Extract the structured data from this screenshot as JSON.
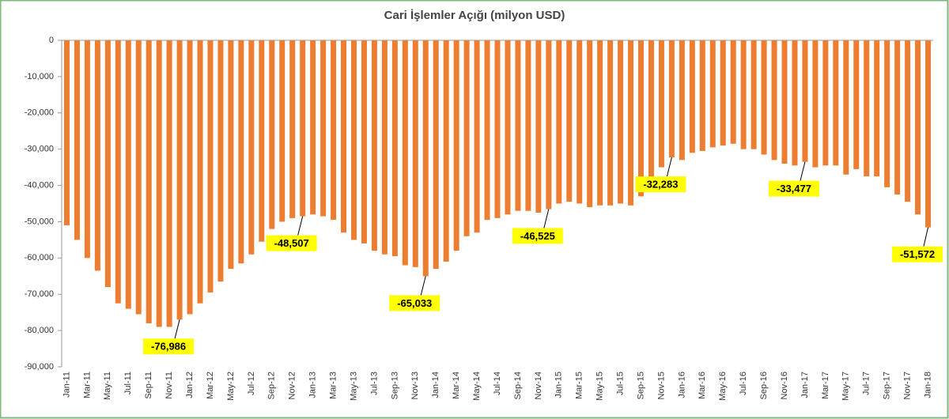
{
  "chart_data": {
    "type": "bar",
    "title": "Cari İşlemler Açığı (milyon USD)",
    "categories": [
      "Jan-11",
      null,
      "Mar-11",
      null,
      "May-11",
      null,
      "Jul-11",
      null,
      "Sep-11",
      null,
      "Nov-11",
      null,
      "Jan-12",
      null,
      "Mar-12",
      null,
      "May-12",
      null,
      "Jul-12",
      null,
      "Sep-12",
      null,
      "Nov-12",
      null,
      "Jan-13",
      null,
      "Mar-13",
      null,
      "May-13",
      null,
      "Jul-13",
      null,
      "Sep-13",
      null,
      "Nov-13",
      null,
      "Jan-14",
      null,
      "Mar-14",
      null,
      "May-14",
      null,
      "Jul-14",
      null,
      "Sep-14",
      null,
      "Nov-14",
      null,
      "Jan-15",
      null,
      "Mar-15",
      null,
      "May-15",
      null,
      "Jul-15",
      null,
      "Sep-15",
      null,
      "Nov-15",
      null,
      "Jan-16",
      null,
      "Mar-16",
      null,
      "May-16",
      null,
      "Jul-16",
      null,
      "Sep-16",
      null,
      "Nov-16",
      null,
      "Jan-17",
      null,
      "Mar-17",
      null,
      "May-17",
      null,
      "Jul-17",
      null,
      "Sep-17",
      null,
      "Nov-17",
      null,
      "Jan-18"
    ],
    "values": [
      -51000,
      -55000,
      -60000,
      -63500,
      -68000,
      -72500,
      -74000,
      -75500,
      -78000,
      -79000,
      -79000,
      -76986,
      -75500,
      -72500,
      -69500,
      -66500,
      -63000,
      -61500,
      -59000,
      -55500,
      -52000,
      -50000,
      -49000,
      -48507,
      -48000,
      -48500,
      -49500,
      -53000,
      -55000,
      -56000,
      -58000,
      -59000,
      -59500,
      -62000,
      -62500,
      -65033,
      -63000,
      -61000,
      -58000,
      -54000,
      -53000,
      -49500,
      -49000,
      -48000,
      -47000,
      -47000,
      -47500,
      -46525,
      -45000,
      -44500,
      -45000,
      -46000,
      -45500,
      -45500,
      -45000,
      -45500,
      -43000,
      -40000,
      -35000,
      -32283,
      -33000,
      -31000,
      -30500,
      -29500,
      -29000,
      -28500,
      -30000,
      -30000,
      -31500,
      -33000,
      -34000,
      -34500,
      -33477,
      -35000,
      -34500,
      -34500,
      -37000,
      -35500,
      -37500,
      -37500,
      -40500,
      -42500,
      -44500,
      -48000,
      -51572
    ],
    "value_labels": [
      null,
      null,
      null,
      null,
      null,
      null,
      null,
      null,
      null,
      null,
      null,
      "-76,986",
      null,
      null,
      null,
      null,
      null,
      null,
      null,
      null,
      null,
      null,
      null,
      "-48,507",
      null,
      null,
      null,
      null,
      null,
      null,
      null,
      null,
      null,
      null,
      null,
      "-65,033",
      null,
      null,
      null,
      null,
      null,
      null,
      null,
      null,
      null,
      null,
      null,
      "-46,525",
      null,
      null,
      null,
      null,
      null,
      null,
      null,
      null,
      null,
      null,
      null,
      "-32,283",
      null,
      null,
      null,
      null,
      null,
      null,
      null,
      null,
      null,
      null,
      null,
      null,
      "-33,477",
      null,
      null,
      null,
      null,
      null,
      null,
      null,
      null,
      null,
      null,
      null,
      "-51,572"
    ],
    "color": "#ed7d31",
    "ylim": [
      -90000,
      0
    ],
    "yticks": [
      0,
      {
        "value": -10000,
        "label": "-10,000"
      },
      {
        "value": -20000,
        "label": "-20,000"
      },
      {
        "value": -30000,
        "label": "-30,000"
      },
      {
        "value": -40000,
        "label": "-40,000"
      },
      {
        "value": -50000,
        "label": "-50,000"
      },
      {
        "value": -60000,
        "label": "-60,000"
      },
      {
        "value": -70000,
        "label": "-70,000"
      },
      {
        "value": -80000,
        "label": "-80,000"
      },
      {
        "value": -90000,
        "label": "-90,000"
      }
    ],
    "grid": false
  }
}
